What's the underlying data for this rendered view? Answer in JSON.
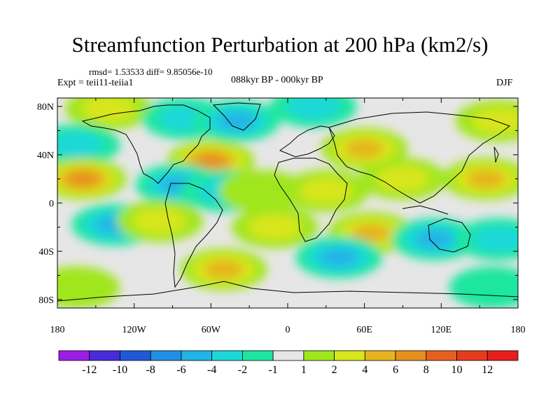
{
  "title": "Streamfunction Perturbation at 200 hPa (km2/s)",
  "stats": "rmsd= 1.53533  diff= 9.85056e-10",
  "expt": "Expt = teii11-teiia1",
  "period": "088kyr BP - 000kyr BP",
  "season": "DJF",
  "lat_labels": [
    "80N",
    "40N",
    "0",
    "40S",
    "80S"
  ],
  "lon_labels": [
    "180",
    "120W",
    "60W",
    "0",
    "60E",
    "120E",
    "180"
  ],
  "colorbar": {
    "labels": [
      "-12",
      "-10",
      "-8",
      "-6",
      "-4",
      "-2",
      "-1",
      "1",
      "2",
      "4",
      "6",
      "8",
      "10",
      "12"
    ],
    "colors": [
      "#9c1ee6",
      "#4a2bd8",
      "#2059d8",
      "#1e90e6",
      "#21b4e6",
      "#1ed8d8",
      "#1ee6a0",
      "#e6e6e6",
      "#a0e61e",
      "#d8e61e",
      "#e6b41e",
      "#e6901e",
      "#e6601e",
      "#e63c1e",
      "#e61e1e"
    ]
  },
  "map_background": "#e6e6e6",
  "field_anomalies": [
    {
      "lon": -140,
      "lat": 78,
      "value": 2
    },
    {
      "lon": -80,
      "lat": 70,
      "value": -2
    },
    {
      "lon": -40,
      "lat": 68,
      "value": -4
    },
    {
      "lon": 20,
      "lat": 80,
      "value": -2
    },
    {
      "lon": -165,
      "lat": 48,
      "value": -2
    },
    {
      "lon": -60,
      "lat": 35,
      "value": 6
    },
    {
      "lon": -160,
      "lat": 20,
      "value": 6
    },
    {
      "lon": -85,
      "lat": 15,
      "value": -4
    },
    {
      "lon": -50,
      "lat": 10,
      "value": -2
    },
    {
      "lon": -20,
      "lat": 10,
      "value": 1
    },
    {
      "lon": 60,
      "lat": 45,
      "value": 4
    },
    {
      "lon": 90,
      "lat": 20,
      "value": 2
    },
    {
      "lon": 155,
      "lat": 20,
      "value": 4
    },
    {
      "lon": 165,
      "lat": 68,
      "value": 2
    },
    {
      "lon": 30,
      "lat": 10,
      "value": 2
    },
    {
      "lon": -135,
      "lat": -18,
      "value": -4
    },
    {
      "lon": -100,
      "lat": -15,
      "value": 2
    },
    {
      "lon": -10,
      "lat": -20,
      "value": 2
    },
    {
      "lon": 65,
      "lat": -25,
      "value": 4
    },
    {
      "lon": 115,
      "lat": -30,
      "value": -4
    },
    {
      "lon": 165,
      "lat": -30,
      "value": -2
    },
    {
      "lon": -50,
      "lat": -55,
      "value": 4
    },
    {
      "lon": 40,
      "lat": -45,
      "value": -4
    },
    {
      "lon": -165,
      "lat": -70,
      "value": 1
    },
    {
      "lon": 160,
      "lat": -70,
      "value": -1
    }
  ]
}
